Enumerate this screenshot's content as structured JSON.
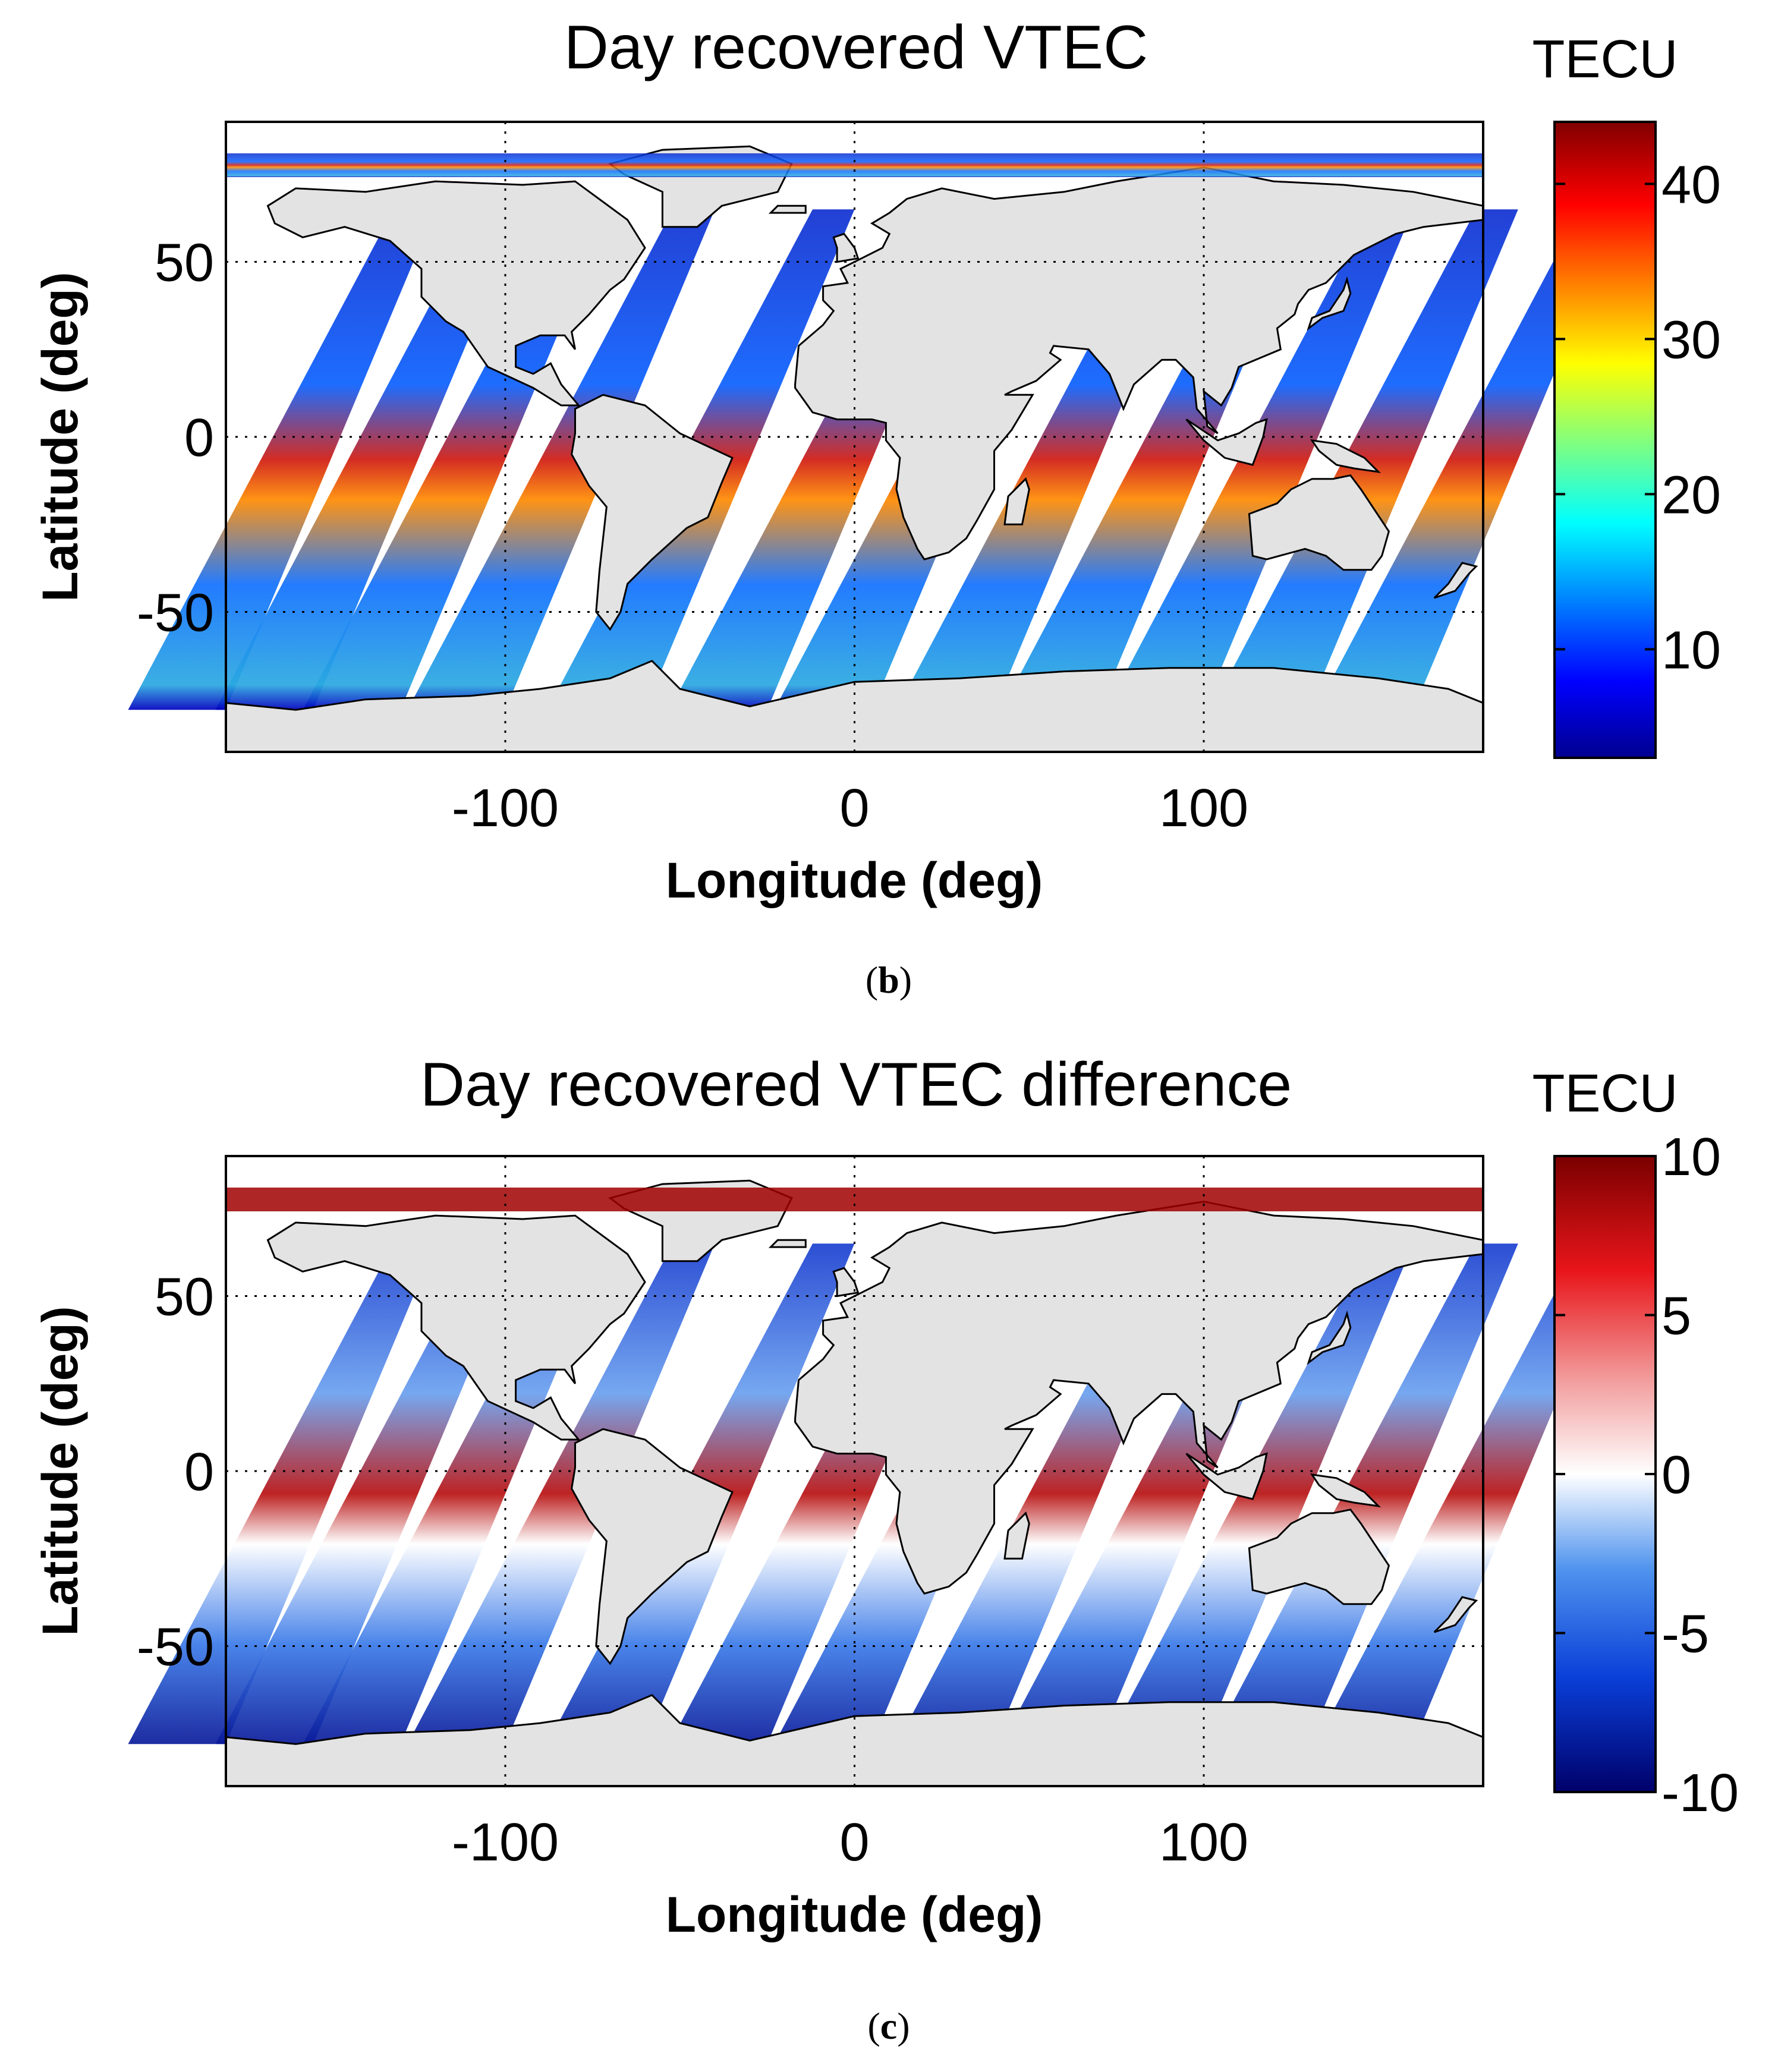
{
  "chart_data": [
    {
      "type": "heatmap",
      "panel_label": "b",
      "title": "Day recovered VTEC",
      "xlabel": "Longitude (deg)",
      "ylabel": "Latitude (deg)",
      "xlim": [
        -180,
        180
      ],
      "ylim": [
        -90,
        90
      ],
      "xticks": [
        -100,
        0,
        100
      ],
      "yticks": [
        50,
        0,
        -50
      ],
      "grid": true,
      "colorbar": {
        "label": "TECU",
        "colormap": "jet",
        "range": [
          3,
          44
        ],
        "ticks": [
          40,
          30,
          20,
          10
        ]
      },
      "track_longitudes_at_equator": [
        -170,
        -145,
        -120,
        -90,
        -50,
        -15,
        15,
        50,
        80,
        110,
        140,
        170
      ]
    },
    {
      "type": "heatmap",
      "panel_label": "c",
      "title": "Day recovered VTEC difference",
      "xlabel": "Longitude (deg)",
      "ylabel": "Latitude (deg)",
      "xlim": [
        -180,
        180
      ],
      "ylim": [
        -90,
        90
      ],
      "xticks": [
        -100,
        0,
        100
      ],
      "yticks": [
        50,
        0,
        -50
      ],
      "grid": true,
      "colorbar": {
        "label": "TECU",
        "colormap": "diverging blue-white-red",
        "range": [
          -10,
          10
        ],
        "ticks": [
          10,
          5,
          0,
          -5,
          -10
        ]
      },
      "track_longitudes_at_equator": [
        -170,
        -145,
        -120,
        -90,
        -50,
        -15,
        15,
        50,
        80,
        110,
        140,
        170
      ]
    }
  ]
}
